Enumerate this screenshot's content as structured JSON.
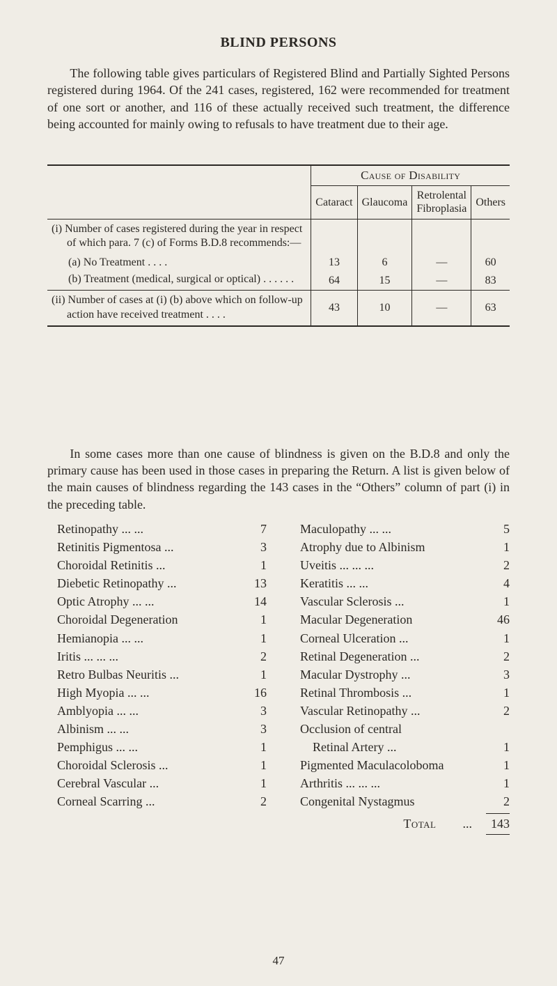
{
  "title": "BLIND PERSONS",
  "intro": "The following table gives particulars of Registered Blind and Partially Sighted Persons registered during 1964.  Of the 241 cases, registered, 162 were recommended for treatment of one sort or another, and 116 of these actually received such treatment, the difference being accounted for mainly owing to refusals to have treatment due to their age.",
  "table1": {
    "super_header": "Cause of Disability",
    "col_headers": [
      "Cataract",
      "Glaucoma",
      "Retrolental Fibroplasia",
      "Others"
    ],
    "rows": [
      {
        "label_main": "(i)  Number of cases registered during the year in respect of which para. 7 (c) of Forms B.D.8 recommends:—",
        "label_a": "(a)  No Treatment       . .       . .",
        "label_b": "(b)  Treatment (medical, surgical or optical)   . .        . .        . .",
        "a": [
          "13",
          "6",
          "—",
          "60"
        ],
        "b": [
          "64",
          "15",
          "—",
          "83"
        ]
      },
      {
        "label_main": "(ii)  Number of cases at (i) (b) above which on follow-up action have received treatment           . .       . .",
        "vals": [
          "43",
          "10",
          "—",
          "63"
        ]
      }
    ]
  },
  "para2": "In some cases more than one cause of blindness is given on the B.D.8 and only the primary cause has been used in those cases in pre­paring the Return.  A list is given below of the main causes of blindness regarding the 143 cases in the “Others” column of part (i) in the preceding table.",
  "list_left": [
    {
      "label": "Retinopathy        ...      ...",
      "val": "7"
    },
    {
      "label": "Retinitis Pigmentosa     ...",
      "val": "3"
    },
    {
      "label": "Choroidal Retinitis        ...",
      "val": "1"
    },
    {
      "label": "Diebetic Retinopathy  ...",
      "val": "13"
    },
    {
      "label": "Optic Atrophy ...        ...",
      "val": "14"
    },
    {
      "label": "Choroidal Degeneration",
      "val": "1"
    },
    {
      "label": "Hemianopia        ...      ...",
      "val": "1"
    },
    {
      "label": "Iritis        ...        ...      ...",
      "val": "2"
    },
    {
      "label": "Retro Bulbas Neuritis ...",
      "val": "1"
    },
    {
      "label": "High Myopia      ...      ...",
      "val": "16"
    },
    {
      "label": "Amblyopia          ...      ...",
      "val": "3"
    },
    {
      "label": "Albinism             ...      ...",
      "val": "3"
    },
    {
      "label": "Pemphigus          ...      ...",
      "val": "1"
    },
    {
      "label": "Choroidal Sclerosis       ...",
      "val": "1"
    },
    {
      "label": "Cerebral Vascular         ...",
      "val": "1"
    },
    {
      "label": "Corneal Scarring           ...",
      "val": "2"
    }
  ],
  "list_right": [
    {
      "label": "Maculopathy       ...      ...",
      "val": "5"
    },
    {
      "label": "Atrophy due to Albinism",
      "val": "1"
    },
    {
      "label": "Uveitis   ...         ...      ...",
      "val": "2"
    },
    {
      "label": "Keratitis              ...      ...",
      "val": "4"
    },
    {
      "label": "Vascular Sclerosis         ...",
      "val": "1"
    },
    {
      "label": "Macular Degeneration",
      "val": "46"
    },
    {
      "label": "Corneal Ulceration       ...",
      "val": "1"
    },
    {
      "label": "Retinal Degeneration  ...",
      "val": "2"
    },
    {
      "label": "Macular Dystrophy      ...",
      "val": "3"
    },
    {
      "label": "Retinal Thrombosis      ...",
      "val": "1"
    },
    {
      "label": "Vascular Retinopathy ...",
      "val": "2"
    },
    {
      "label": "Occlusion of central",
      "val": ""
    },
    {
      "label": "Retinal Artery           ...",
      "val": "1",
      "indent": true
    },
    {
      "label": "Pigmented Maculacoloboma",
      "val": "1",
      "wrap": true
    },
    {
      "label": "Arthritis ...         ...      ...",
      "val": "1"
    },
    {
      "label": "Congenital Nystagmus",
      "val": "2"
    }
  ],
  "total_label": "Total",
  "total_dots": "...",
  "total_value": "143",
  "page_number": "47"
}
